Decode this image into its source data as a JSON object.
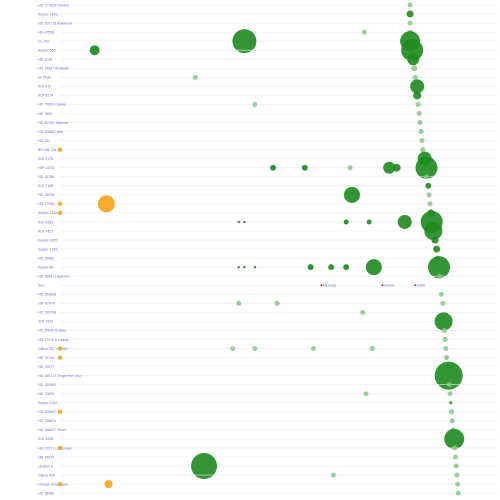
{
  "colors": {
    "planet_dark": "#1e8a1e",
    "planet_light": "#86c986",
    "star": "#f7a21b",
    "label": "#6a6fd8",
    "solar_marker": "#d62828",
    "grid": "#e9e9ee"
  },
  "chart_data": {
    "type": "scatter",
    "x_scale": "log",
    "grid": true,
    "rows": [
      {
        "name": "HD 177830",
        "extra": "Gordon",
        "planets": [
          {
            "x": 0.95,
            "r": 2.5,
            "c": "light"
          }
        ]
      },
      {
        "name": "Kepler-1606",
        "extra": "",
        "planets": [
          {
            "x": 0.95,
            "r": 3.5,
            "c": "dark"
          }
        ]
      },
      {
        "name": "HD 200718",
        "extra": "Bellwood",
        "planets": [
          {
            "x": 0.95,
            "r": 2.5,
            "c": "light"
          }
        ]
      },
      {
        "name": "HD 47536",
        "extra": "",
        "planets": [
          {
            "x": 0.6,
            "r": 2.5,
            "c": "light"
          },
          {
            "x": 0.95,
            "r": 2.5,
            "c": "light"
          }
        ]
      },
      {
        "name": "CL 763",
        "extra": "",
        "planets": [
          {
            "x": 0.18,
            "r": 12,
            "c": "dark"
          },
          {
            "x": 0.95,
            "r": 10,
            "c": "dark"
          }
        ]
      },
      {
        "name": "Kepler-553",
        "extra": "",
        "planets": [
          {
            "x": 0.04,
            "r": 5,
            "c": "dark"
          },
          {
            "x": 0.97,
            "r": 11,
            "c": "dark"
          }
        ]
      },
      {
        "name": "HD 1138",
        "extra": "",
        "planets": [
          {
            "x": 0.98,
            "r": 6,
            "c": "dark"
          }
        ]
      },
      {
        "name": "HD 14867",
        "extra": "Amaletto",
        "planets": [
          {
            "x": 0.99,
            "r": 3,
            "c": "light"
          }
        ]
      },
      {
        "name": "nu Piski",
        "extra": "",
        "planets": [
          {
            "x": 0.11,
            "r": 2.5,
            "c": "light"
          },
          {
            "x": 1.0,
            "r": 2.5,
            "c": "light"
          }
        ]
      },
      {
        "name": "KOI 972",
        "extra": "",
        "planets": [
          {
            "x": 1.02,
            "r": 7,
            "c": "dark"
          }
        ]
      },
      {
        "name": "KOI 5274",
        "extra": "",
        "planets": [
          {
            "x": 1.02,
            "r": 4,
            "c": "dark"
          }
        ]
      },
      {
        "name": "HD 77808",
        "extra": "Dabbo",
        "planets": [
          {
            "x": 0.2,
            "r": 2.5,
            "c": "light"
          },
          {
            "x": 1.03,
            "r": 2.5,
            "c": "light"
          }
        ]
      },
      {
        "name": "HD 7800",
        "extra": "",
        "planets": [
          {
            "x": 1.04,
            "r": 2.5,
            "c": "light"
          }
        ]
      },
      {
        "name": "HD 60780",
        "extra": "Tapenal",
        "planets": [
          {
            "x": 1.05,
            "r": 2.5,
            "c": "light"
          }
        ]
      },
      {
        "name": "HD 20888",
        "extra": "Little",
        "planets": [
          {
            "x": 1.06,
            "r": 2.5,
            "c": "light"
          }
        ]
      },
      {
        "name": "HD 331",
        "extra": "",
        "planets": [
          {
            "x": 1.07,
            "r": 2.5,
            "c": "light"
          }
        ]
      },
      {
        "name": "BD+48 738",
        "extra": "",
        "star": true,
        "planets": [
          {
            "x": 1.08,
            "r": 2.5,
            "c": "light"
          }
        ]
      },
      {
        "name": "KOI 3175",
        "extra": "",
        "planets": [
          {
            "x": 1.1,
            "r": 7,
            "c": "dark"
          }
        ]
      },
      {
        "name": "HIP 14703",
        "extra": "",
        "planets": [
          {
            "x": 0.24,
            "r": 3,
            "c": "dark"
          },
          {
            "x": 0.33,
            "r": 3,
            "c": "dark"
          },
          {
            "x": 0.52,
            "r": 2.5,
            "c": "light"
          },
          {
            "x": 0.77,
            "r": 6,
            "c": "dark"
          },
          {
            "x": 0.83,
            "r": 4,
            "c": "dark"
          },
          {
            "x": 1.12,
            "r": 11,
            "c": "dark"
          }
        ]
      },
      {
        "name": "HD 16788",
        "extra": "",
        "planets": [
          {
            "x": 1.12,
            "r": 2.5,
            "c": "light"
          }
        ]
      },
      {
        "name": "KOI 7188",
        "extra": "",
        "planets": [
          {
            "x": 1.14,
            "r": 3,
            "c": "dark"
          }
        ]
      },
      {
        "name": "HD 18436",
        "extra": "",
        "planets": [
          {
            "x": 0.53,
            "r": 8,
            "c": "dark"
          },
          {
            "x": 1.15,
            "r": 2.5,
            "c": "light"
          }
        ]
      },
      {
        "name": "HD 77908",
        "extra": "",
        "star": true,
        "planets": [
          {
            "x": 1.16,
            "r": 2.5,
            "c": "light"
          }
        ]
      },
      {
        "name": "Kepler-1634",
        "extra": "",
        "star": true,
        "planets": [
          {
            "x": 1.17,
            "r": 3.5,
            "c": "dark"
          }
        ]
      },
      {
        "name": "KOI 2083",
        "extra": "",
        "planets": [
          {
            "x": 0.17,
            "r": 1.2,
            "c": "dark"
          },
          {
            "x": 0.18,
            "r": 1.2,
            "c": "dark"
          },
          {
            "x": 0.5,
            "r": 2.5,
            "c": "dark"
          },
          {
            "x": 0.63,
            "r": 2.5,
            "c": "dark"
          },
          {
            "x": 0.9,
            "r": 7,
            "c": "dark"
          },
          {
            "x": 1.18,
            "r": 11,
            "c": "dark"
          }
        ]
      },
      {
        "name": "KOI 7421",
        "extra": "",
        "planets": [
          {
            "x": 1.2,
            "r": 9,
            "c": "dark"
          }
        ]
      },
      {
        "name": "Kepler-1820",
        "extra": "",
        "planets": [
          {
            "x": 1.22,
            "r": 3.5,
            "c": "dark"
          }
        ]
      },
      {
        "name": "Kepler-1924",
        "extra": "",
        "planets": [
          {
            "x": 1.24,
            "r": 3.5,
            "c": "dark"
          }
        ]
      },
      {
        "name": "HD 16480",
        "extra": "",
        "planets": [
          {
            "x": 1.25,
            "r": 2.5,
            "c": "light"
          }
        ]
      },
      {
        "name": "Kepler-80",
        "extra": "",
        "planets": [
          {
            "x": 0.17,
            "r": 1.2,
            "c": "dark"
          },
          {
            "x": 0.18,
            "r": 1.2,
            "c": "dark"
          },
          {
            "x": 0.2,
            "r": 1.2,
            "c": "dark"
          },
          {
            "x": 0.35,
            "r": 3,
            "c": "dark"
          },
          {
            "x": 0.43,
            "r": 3,
            "c": "dark"
          },
          {
            "x": 0.5,
            "r": 3,
            "c": "dark"
          },
          {
            "x": 0.66,
            "r": 8,
            "c": "dark"
          },
          {
            "x": 1.27,
            "r": 11,
            "c": "dark"
          }
        ]
      },
      {
        "name": "HD 38801",
        "extra": "Hyperion",
        "planets": [
          {
            "x": 1.28,
            "r": 2.5,
            "c": "light"
          }
        ]
      },
      {
        "name": "Sun",
        "extra": "",
        "solar": true,
        "planets": []
      },
      {
        "name": "HD 159868",
        "extra": "",
        "planets": [
          {
            "x": 1.3,
            "r": 2.5,
            "c": "light"
          }
        ]
      },
      {
        "name": "HIP 67074",
        "extra": "",
        "planets": [
          {
            "x": 0.17,
            "r": 2.5,
            "c": "light"
          },
          {
            "x": 0.25,
            "r": 2.5,
            "c": "light"
          },
          {
            "x": 1.32,
            "r": 2.5,
            "c": "light"
          }
        ]
      },
      {
        "name": "HD 200208",
        "extra": "",
        "planets": [
          {
            "x": 0.59,
            "r": 2.5,
            "c": "light"
          }
        ]
      },
      {
        "name": "KOI 7203",
        "extra": "",
        "planets": [
          {
            "x": 1.33,
            "r": 9,
            "c": "dark"
          }
        ]
      },
      {
        "name": "HD 30000",
        "extra": "Buttoq",
        "planets": [
          {
            "x": 1.34,
            "r": 2.5,
            "c": "light"
          }
        ]
      },
      {
        "name": "HD 77070 b",
        "extra": "Lissoli",
        "planets": [
          {
            "x": 1.35,
            "r": 2.5,
            "c": "light"
          }
        ]
      },
      {
        "name": "Gliese 357",
        "extra": "Cir 354",
        "star": true,
        "planets": [
          {
            "x": 0.16,
            "r": 2.5,
            "c": "light"
          },
          {
            "x": 0.2,
            "r": 2.5,
            "c": "light"
          },
          {
            "x": 0.36,
            "r": 2.5,
            "c": "light"
          },
          {
            "x": 0.65,
            "r": 2.5,
            "c": "light"
          },
          {
            "x": 1.36,
            "r": 2.5,
            "c": "light"
          }
        ]
      },
      {
        "name": "HD 79748",
        "extra": "",
        "star": true,
        "planets": [
          {
            "x": 1.37,
            "r": 2.5,
            "c": "light"
          }
        ]
      },
      {
        "name": "HD 70077",
        "extra": "",
        "planets": [
          {
            "x": 1.38,
            "r": 2.5,
            "c": "light"
          }
        ]
      },
      {
        "name": "HD 190717",
        "extra": "Finger the Shu",
        "planets": [
          {
            "x": 1.4,
            "r": 14,
            "c": "dark"
          }
        ]
      },
      {
        "name": "HD 150983",
        "extra": "",
        "planets": [
          {
            "x": 1.41,
            "r": 2.5,
            "c": "light"
          }
        ]
      },
      {
        "name": "HD 72826",
        "extra": "",
        "planets": [
          {
            "x": 0.61,
            "r": 2.5,
            "c": "light"
          },
          {
            "x": 1.42,
            "r": 2.5,
            "c": "light"
          }
        ]
      },
      {
        "name": "Kepler-1042",
        "extra": "",
        "planets": [
          {
            "x": 1.43,
            "r": 1.5,
            "c": "dark"
          }
        ]
      },
      {
        "name": "HD 209887",
        "extra": "",
        "star": true,
        "planets": [
          {
            "x": 1.44,
            "r": 2.5,
            "c": "light"
          }
        ]
      },
      {
        "name": "HD 74887b",
        "extra": "",
        "planets": [
          {
            "x": 1.45,
            "r": 2.5,
            "c": "light"
          }
        ]
      },
      {
        "name": "HD 168427",
        "extra": "Tenel",
        "planets": [
          {
            "x": 1.46,
            "r": 2.5,
            "c": "light"
          }
        ]
      },
      {
        "name": "KOI 1928",
        "extra": "",
        "planets": [
          {
            "x": 1.48,
            "r": 10,
            "c": "dark"
          }
        ]
      },
      {
        "name": "HD 27071",
        "extra": "Lemonfalk",
        "star": true,
        "planets": [
          {
            "x": 1.49,
            "r": 2.5,
            "c": "light"
          }
        ]
      },
      {
        "name": "HD 74876",
        "extra": "",
        "planets": [
          {
            "x": 1.5,
            "r": 2.5,
            "c": "light"
          }
        ]
      },
      {
        "name": "Upsilon 9",
        "extra": "",
        "planets": [
          {
            "x": 0.12,
            "r": 13,
            "c": "dark"
          },
          {
            "x": 1.51,
            "r": 2.5,
            "c": "light"
          }
        ]
      },
      {
        "name": "Gliese 424",
        "extra": "",
        "planets": [
          {
            "x": 0.44,
            "r": 2.5,
            "c": "light"
          },
          {
            "x": 1.52,
            "r": 2.5,
            "c": "light"
          }
        ]
      },
      {
        "name": "Omega Sinjordanti",
        "extra": "",
        "star": true,
        "planets": [
          {
            "x": 1.53,
            "r": 2.5,
            "c": "light"
          }
        ]
      },
      {
        "name": "HD 38066",
        "extra": "",
        "planets": [
          {
            "x": 1.54,
            "r": 2.5,
            "c": "light"
          }
        ]
      }
    ],
    "solar_planets": [
      {
        "name": "Mercury",
        "x": 0.39
      },
      {
        "name": "Venus",
        "x": 0.72
      },
      {
        "name": "Earth",
        "x": 1.0
      }
    ]
  }
}
